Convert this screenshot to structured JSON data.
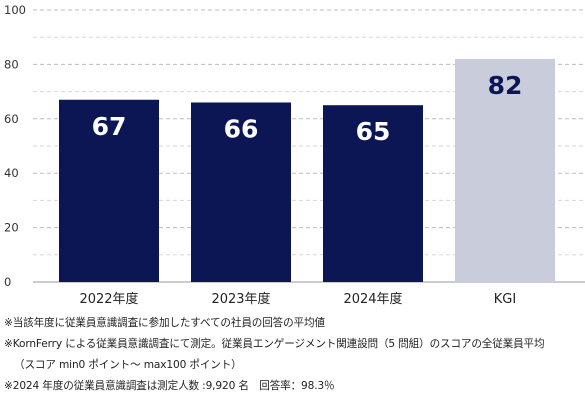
{
  "chart_data": {
    "type": "bar",
    "categories": [
      "2022年度",
      "2023年度",
      "2024年度",
      "KGI"
    ],
    "values": [
      67,
      66,
      65,
      82
    ],
    "data_labels": [
      "67",
      "66",
      "65",
      "82"
    ],
    "ylim": [
      0,
      100
    ],
    "yticks": [
      0,
      20,
      40,
      60,
      80,
      100
    ],
    "grid": "dashed horizontal",
    "colors": {
      "actual": "#0d1654",
      "target": "#c9ccda",
      "label_on_dark": "#ffffff",
      "label_on_light": "#0d1654"
    },
    "title": "",
    "xlabel": "",
    "ylabel": ""
  },
  "notes": [
    "※当該年度に従業員意識調査に参加したすべての社員の回答の平均値",
    "※KornFerry による従業員意識調査にて測定。従業員エンゲージメント関連設問（5 問組）のスコアの全従業員平均",
    "（スコア min0 ポイント～ max100 ポイント）",
    "※2024 年度の従業員意識調査は測定人数 :9,920 名　回答率：98.3％"
  ]
}
